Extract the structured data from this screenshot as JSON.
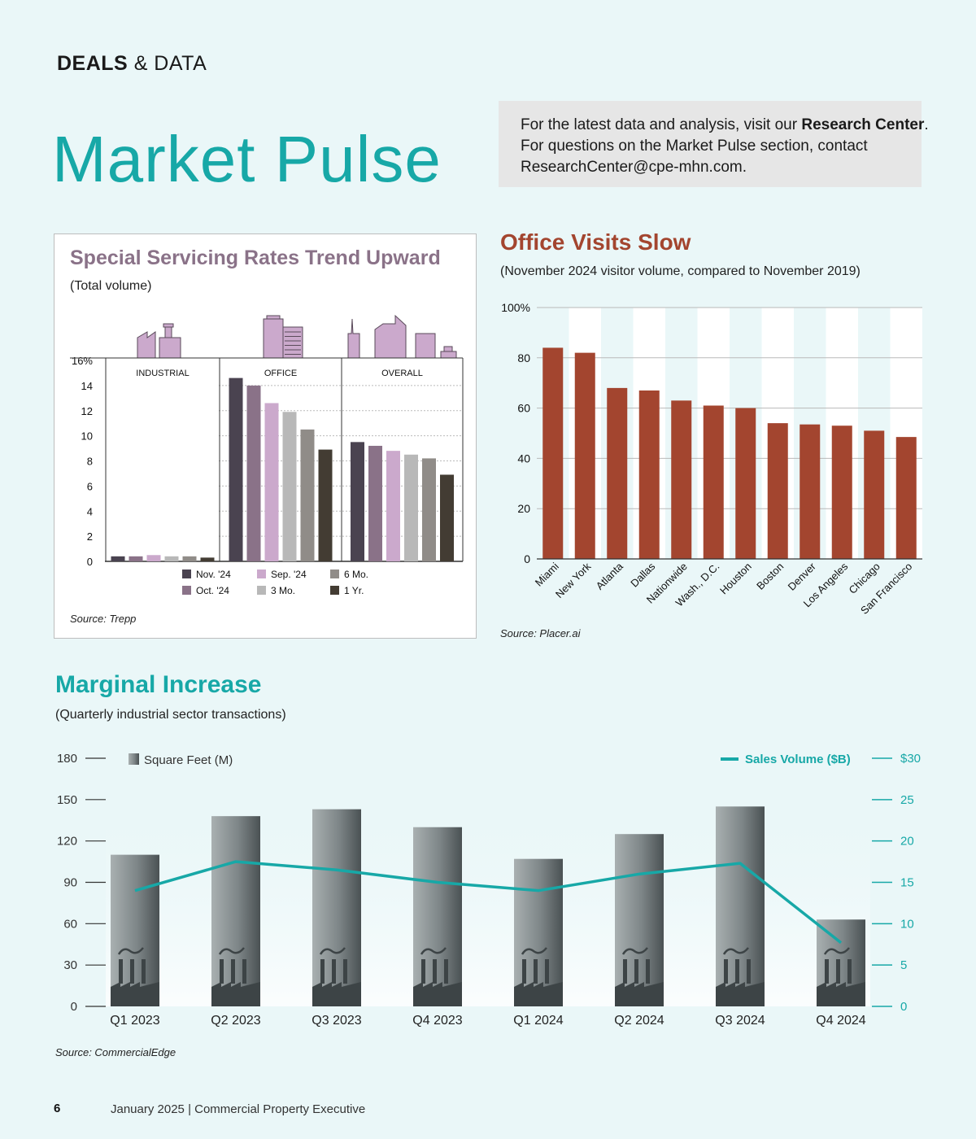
{
  "header": {
    "section_bold": "DEALS",
    "section_rest": "& DATA",
    "title": "Market Pulse"
  },
  "info_box": {
    "line1_pre": "For the latest data and analysis, visit our ",
    "line1_bold": "Research Center",
    "line1_post": ".",
    "line2": "For questions on the Market Pulse section, contact",
    "line3": "ResearchCenter@cpe-mhn.com."
  },
  "footer": {
    "page_number": "6",
    "text": "January 2025  |  Commercial Property Executive"
  },
  "colors": {
    "background": "#eaf7f8",
    "teal": "#17a8a7",
    "rust": "#a3452f",
    "purple_title": "#8a7288"
  },
  "chart_data": [
    {
      "id": "servicing",
      "type": "bar",
      "title": "Special Servicing Rates Trend Upward",
      "subtitle": "(Total volume)",
      "source": "Source: Trepp",
      "categories": [
        "INDUSTRIAL",
        "OFFICE",
        "OVERALL"
      ],
      "y_ticks": [
        "16%",
        "14",
        "12",
        "10",
        "8",
        "6",
        "4",
        "2",
        "0"
      ],
      "ylim": [
        0,
        16
      ],
      "grid": true,
      "legend_position": "bottom",
      "series": [
        {
          "name": "Nov. '24",
          "color": "#4a4350",
          "values": [
            0.4,
            14.6,
            9.5
          ]
        },
        {
          "name": "Oct. '24",
          "color": "#8a7288",
          "values": [
            0.4,
            14.0,
            9.2
          ]
        },
        {
          "name": "Sep. '24",
          "color": "#cba9cc",
          "values": [
            0.5,
            12.6,
            8.8
          ]
        },
        {
          "name": "3 Mo.",
          "color": "#b8b8b8",
          "values": [
            0.4,
            11.9,
            8.5
          ]
        },
        {
          "name": "6 Mo.",
          "color": "#908c88",
          "values": [
            0.4,
            10.5,
            8.2
          ]
        },
        {
          "name": "1 Yr.",
          "color": "#433c33",
          "values": [
            0.3,
            8.9,
            6.9
          ]
        }
      ],
      "legend_order": [
        "Nov. '24",
        "Sep. '24",
        "6 Mo.",
        "Oct. '24",
        "3 Mo.",
        "1 Yr."
      ]
    },
    {
      "id": "office_visits",
      "type": "bar",
      "title": "Office Visits Slow",
      "subtitle": "(November 2024 visitor volume, compared to November 2019)",
      "source": "Source: Placer.ai",
      "categories": [
        "Miami",
        "New York",
        "Atlanta",
        "Dallas",
        "Nationwide",
        "Wash., D.C.",
        "Houston",
        "Boston",
        "Denver",
        "Los Angeles",
        "Chicago",
        "San Francisco"
      ],
      "values": [
        84,
        82,
        68,
        67,
        63,
        61,
        60,
        54,
        53.5,
        53,
        51,
        48.5
      ],
      "y_ticks": [
        "100%",
        "80",
        "60",
        "40",
        "20",
        "0"
      ],
      "ylim": [
        0,
        100
      ],
      "color": "#a3452f",
      "grid": true
    },
    {
      "id": "marginal_increase",
      "type": "bar",
      "title": "Marginal Increase",
      "subtitle": "(Quarterly industrial sector transactions)",
      "source": "Source: CommercialEdge",
      "categories": [
        "Q1 2023",
        "Q2 2023",
        "Q3 2023",
        "Q4 2023",
        "Q1 2024",
        "Q2 2024",
        "Q3 2024",
        "Q4 2024"
      ],
      "series": [
        {
          "name": "Square Feet (M)",
          "type": "bar",
          "axis": "left",
          "values": [
            110,
            138,
            143,
            130,
            107,
            125,
            145,
            63
          ]
        },
        {
          "name": "Sales Volume ($B)",
          "type": "line",
          "axis": "right",
          "color": "#17a8a7",
          "values": [
            14,
            17.5,
            16.5,
            15,
            14,
            16,
            17.3,
            7.7
          ]
        }
      ],
      "left_ticks": [
        "180",
        "150",
        "120",
        "90",
        "60",
        "30",
        "0"
      ],
      "right_ticks": [
        "$30",
        "25",
        "20",
        "15",
        "10",
        "5",
        "0"
      ],
      "ylim_left": [
        0,
        180
      ],
      "ylim_right": [
        0,
        30
      ],
      "legend_position": "top"
    }
  ]
}
